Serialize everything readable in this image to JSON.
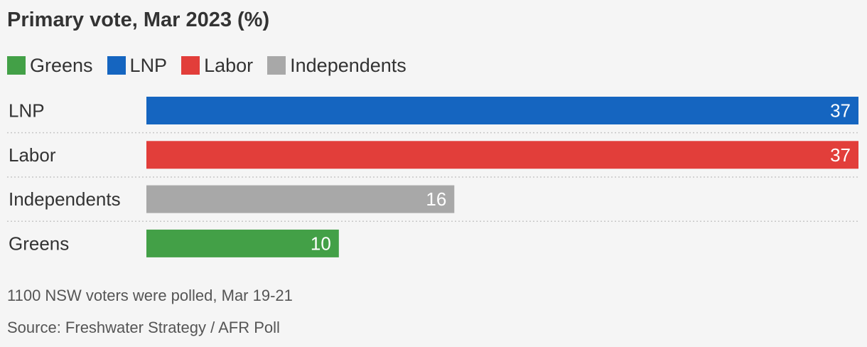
{
  "title": "Primary vote, Mar 2023 (%)",
  "legend": [
    {
      "label": "Greens",
      "color": "#43a047"
    },
    {
      "label": "LNP",
      "color": "#1565c0"
    },
    {
      "label": "Labor",
      "color": "#e23e3a"
    },
    {
      "label": "Independents",
      "color": "#a8a8a8"
    }
  ],
  "chart_data": {
    "type": "bar",
    "orientation": "horizontal",
    "title": "Primary vote, Mar 2023 (%)",
    "categories": [
      "LNP",
      "Labor",
      "Independents",
      "Greens"
    ],
    "values": [
      37,
      37,
      16,
      10
    ],
    "colors": [
      "#1565c0",
      "#e23e3a",
      "#a8a8a8",
      "#43a047"
    ],
    "xlim": [
      0,
      37
    ],
    "grid": false,
    "row_separators": "dotted",
    "data_labels": "inside-end"
  },
  "footer": {
    "note": "1100 NSW voters were polled, Mar 19-21",
    "source": "Source: Freshwater Strategy / AFR Poll"
  }
}
